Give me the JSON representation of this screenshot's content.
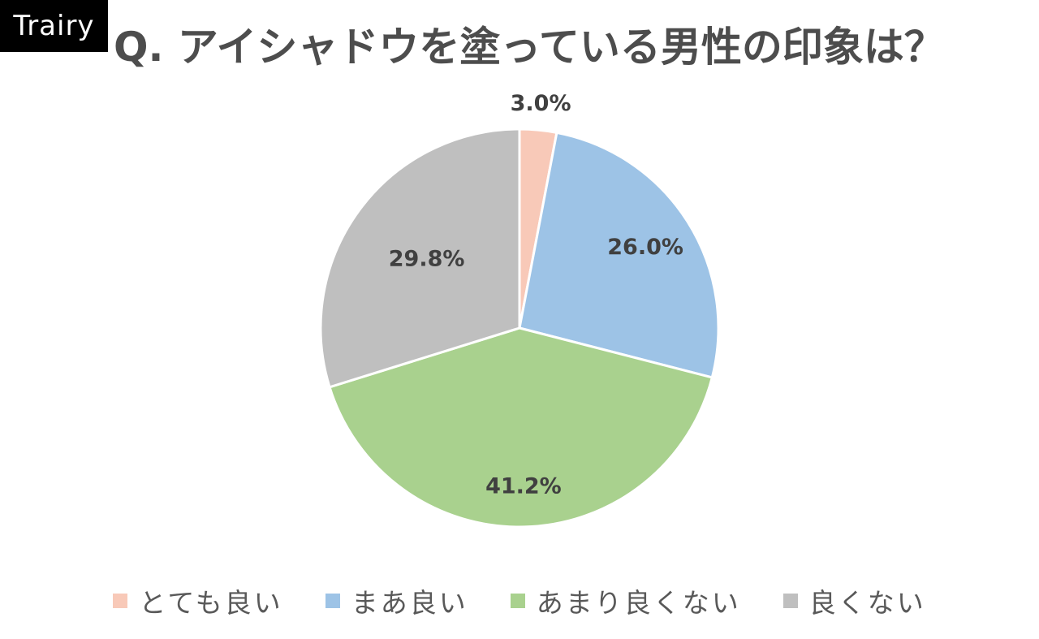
{
  "logo": {
    "text": "Trairy"
  },
  "chart_data": {
    "type": "pie",
    "title": "Q. アイシャドウを塗っている男性の印象は？",
    "start": "top, clockwise",
    "slices": [
      {
        "label": "とても良い",
        "value": 3.0,
        "display": "3.0%",
        "color": "#F8C9B8"
      },
      {
        "label": "まあ良い",
        "value": 26.0,
        "display": "26.0%",
        "color": "#9DC3E6"
      },
      {
        "label": "あまり良くない",
        "value": 41.2,
        "display": "41.2%",
        "color": "#A9D18E"
      },
      {
        "label": "良くない",
        "value": 29.8,
        "display": "29.8%",
        "color": "#BFBFBF"
      }
    ],
    "legend_position": "bottom",
    "label_color": "#404040"
  }
}
